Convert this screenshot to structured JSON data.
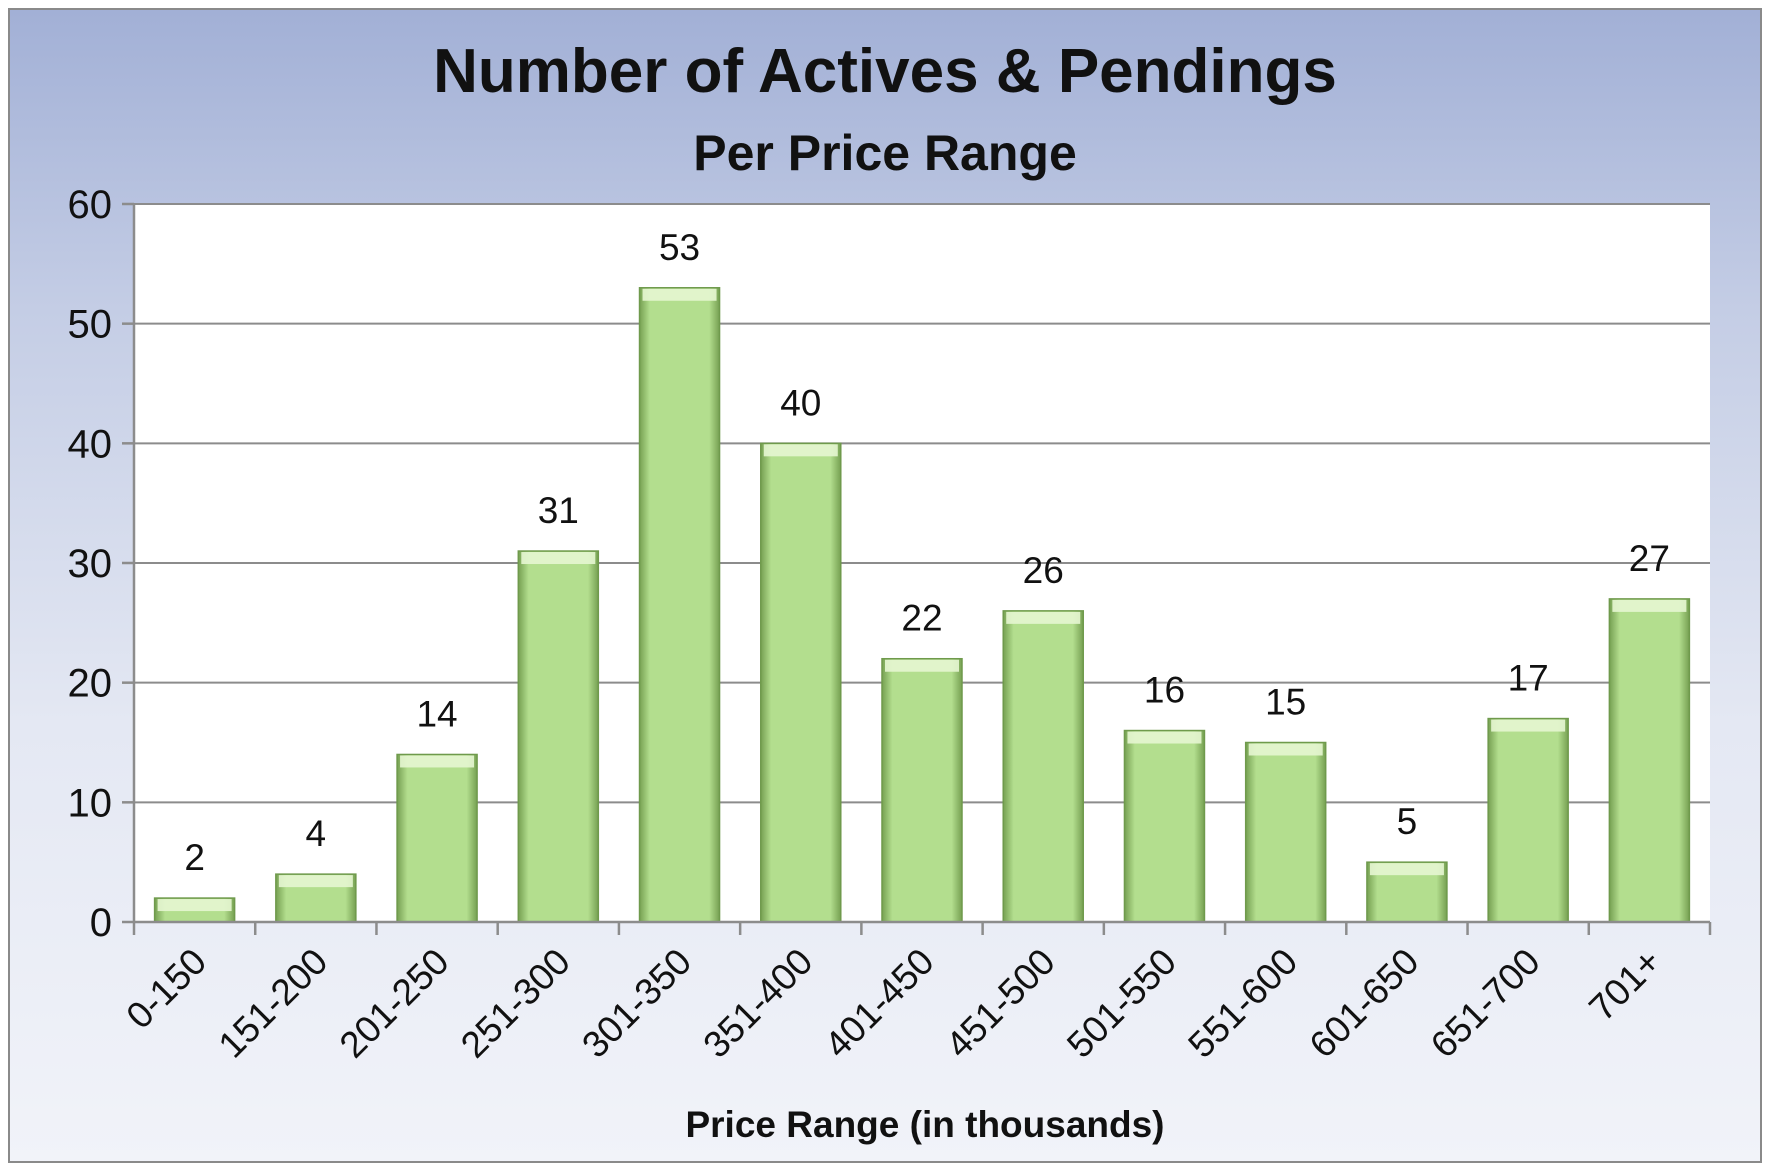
{
  "chart_data": {
    "type": "bar",
    "title": "Number of Actives & Pendings",
    "subtitle": "Per Price Range",
    "xlabel": "Price Range (in thousands)",
    "ylabel": "",
    "ylim": [
      0,
      60
    ],
    "yticks": [
      0,
      10,
      20,
      30,
      40,
      50,
      60
    ],
    "grid": true,
    "legend": "none",
    "categories": [
      "0-150",
      "151-200",
      "201-250",
      "251-300",
      "301-350",
      "351-400",
      "401-450",
      "451-500",
      "501-550",
      "551-600",
      "601-650",
      "651-700",
      "701+"
    ],
    "values": [
      2,
      4,
      14,
      31,
      53,
      40,
      22,
      26,
      16,
      15,
      5,
      17,
      27
    ],
    "data_labels": [
      "2",
      "4",
      "14",
      "31",
      "53",
      "40",
      "22",
      "26",
      "16",
      "15",
      "5",
      "17",
      "27"
    ],
    "colors": {
      "bar": "#b3de8e",
      "bar_dark": "#6f9a4c",
      "bar_top": "#e6f6d2"
    }
  }
}
